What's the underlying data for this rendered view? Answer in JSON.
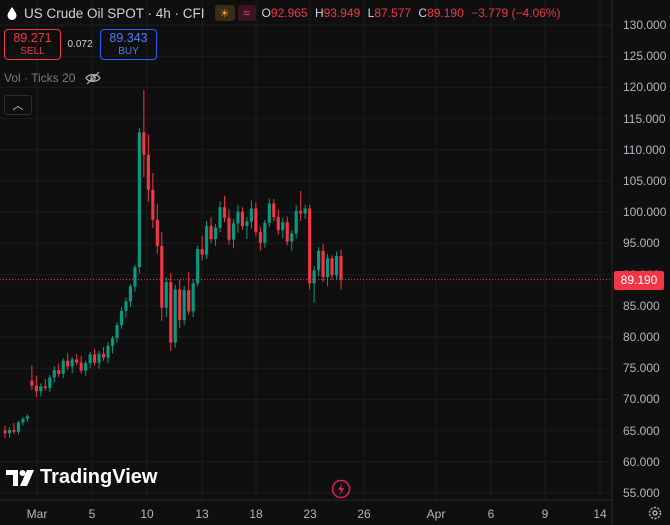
{
  "header": {
    "title": "US Crude Oil SPOT · 4h · CFI",
    "session_icon": "sun-icon",
    "ohlc": [
      {
        "label": "O",
        "value": "92.965"
      },
      {
        "label": "H",
        "value": "93.949"
      },
      {
        "label": "L",
        "value": "87.577"
      },
      {
        "label": "C",
        "value": "89.190"
      },
      {
        "label": "",
        "value": "−3.779 (−4.06%)"
      }
    ]
  },
  "trade": {
    "sell_price": "89.271",
    "sell_label": "SELL",
    "spread": "0.072",
    "buy_price": "89.343",
    "buy_label": "BUY"
  },
  "indicator": {
    "label": "Vol · Ticks 20"
  },
  "logo": {
    "text": "TradingView"
  },
  "price_axis": {
    "ticks": [
      "130.000",
      "125.000",
      "120.000",
      "115.000",
      "110.000",
      "105.000",
      "100.000",
      "95.000",
      "90.000",
      "85.000",
      "80.000",
      "75.000",
      "70.000",
      "65.000",
      "60.000",
      "55.000"
    ],
    "last_price": "89.190"
  },
  "time_axis": {
    "ticks": [
      "Mar",
      "5",
      "10",
      "13",
      "18",
      "23",
      "26",
      "Apr",
      "6",
      "9",
      "14"
    ]
  },
  "colors": {
    "up": "#089981",
    "down": "#f23645",
    "background": "#0f0f0f",
    "grid": "#1c1c1c"
  },
  "chart_data": {
    "type": "candlestick",
    "ylim": [
      55,
      130
    ],
    "grid": true,
    "last_price": 89.19,
    "candles": [
      [
        65,
        65.8,
        63.8,
        64.6
      ],
      [
        64.6,
        65.6,
        63.9,
        65.1
      ],
      [
        65.1,
        66.2,
        64.5,
        64.8
      ],
      [
        64.8,
        66.6,
        64.4,
        66.3
      ],
      [
        66.3,
        67.2,
        65.8,
        66.9
      ],
      [
        66.9,
        67.6,
        66.4,
        67.3
      ],
      [
        73,
        75.5,
        71.5,
        72.2
      ],
      [
        72.2,
        73.8,
        70.4,
        71.3
      ],
      [
        71.3,
        72.6,
        70.5,
        72.1
      ],
      [
        72.1,
        73.3,
        71.4,
        71.8
      ],
      [
        71.8,
        73.9,
        71.2,
        73.5
      ],
      [
        73.5,
        75.3,
        72.7,
        74.7
      ],
      [
        74.7,
        75.8,
        73.6,
        74.1
      ],
      [
        74.1,
        76.6,
        73.4,
        76.2
      ],
      [
        76.2,
        77.4,
        74.7,
        75.3
      ],
      [
        75.3,
        76.8,
        74.2,
        76.4
      ],
      [
        76.4,
        77.3,
        75.5,
        75.9
      ],
      [
        75.9,
        77,
        74.1,
        74.6
      ],
      [
        74.6,
        76.2,
        73.8,
        75.8
      ],
      [
        75.8,
        77.6,
        75,
        77.2
      ],
      [
        77.2,
        78.1,
        75.4,
        75.9
      ],
      [
        75.9,
        77.8,
        74.9,
        77.3
      ],
      [
        77.3,
        78.4,
        76.2,
        76.7
      ],
      [
        76.7,
        79.2,
        75.8,
        78.6
      ],
      [
        78.6,
        80.2,
        77.4,
        79.8
      ],
      [
        79.8,
        82.4,
        79.1,
        81.9
      ],
      [
        81.9,
        84.8,
        81.3,
        84.2
      ],
      [
        84.2,
        86.3,
        83.1,
        85.7
      ],
      [
        85.7,
        88.5,
        84.8,
        88.1
      ],
      [
        88.1,
        91.6,
        87.3,
        91.2
      ],
      [
        91.2,
        113.5,
        90.2,
        112.8
      ],
      [
        112.8,
        119.6,
        105.6,
        109.2
      ],
      [
        109.2,
        112.4,
        101.7,
        103.6
      ],
      [
        103.6,
        106.3,
        97.5,
        98.8
      ],
      [
        98.8,
        101.4,
        93.4,
        94.6
      ],
      [
        94.6,
        96.8,
        82.6,
        84.7
      ],
      [
        84.7,
        89.6,
        83.2,
        88.8
      ],
      [
        88.8,
        90.2,
        77.8,
        79.1
      ],
      [
        79.1,
        88.4,
        78.3,
        87.6
      ],
      [
        87.6,
        89.2,
        81.4,
        82.7
      ],
      [
        82.7,
        88.2,
        81.9,
        87.5
      ],
      [
        87.5,
        90.4,
        83.6,
        84.1
      ],
      [
        84.1,
        89.3,
        83.2,
        88.6
      ],
      [
        88.6,
        94.6,
        88.1,
        94.1
      ],
      [
        94.1,
        96.2,
        92.3,
        93.2
      ],
      [
        93.2,
        98.6,
        92.5,
        97.8
      ],
      [
        97.8,
        99.2,
        95.1,
        95.7
      ],
      [
        95.7,
        98.1,
        94.6,
        97.5
      ],
      [
        97.5,
        101.7,
        96.8,
        100.8
      ],
      [
        100.8,
        102.6,
        98.4,
        99.1
      ],
      [
        99.1,
        100.5,
        94.8,
        95.6
      ],
      [
        95.6,
        98.9,
        94.2,
        98.2
      ],
      [
        98.2,
        101.2,
        96.7,
        100.1
      ],
      [
        100.1,
        100.8,
        97.2,
        97.8
      ],
      [
        97.8,
        99.2,
        95.7,
        98.5
      ],
      [
        98.5,
        101.9,
        97.4,
        100.6
      ],
      [
        100.6,
        101.6,
        96.2,
        96.8
      ],
      [
        96.8,
        97.6,
        93.9,
        95.1
      ],
      [
        95.1,
        98.8,
        94.3,
        98.3
      ],
      [
        98.3,
        102.2,
        97.6,
        101.4
      ],
      [
        101.4,
        102.1,
        98.6,
        99.2
      ],
      [
        99.2,
        100.4,
        96.4,
        97.1
      ],
      [
        97.1,
        99.1,
        95.8,
        98.4
      ],
      [
        98.4,
        99.3,
        94.7,
        95.3
      ],
      [
        95.3,
        97.1,
        93.8,
        96.6
      ],
      [
        96.6,
        101.1,
        95.8,
        100.2
      ],
      [
        100.2,
        103.4,
        98.6,
        99.8
      ],
      [
        99.8,
        101.2,
        98.9,
        100.6
      ],
      [
        100.6,
        101.2,
        87.6,
        88.6
      ],
      [
        88.6,
        91.4,
        85.5,
        90.7
      ],
      [
        90.7,
        94.4,
        89.7,
        93.8
      ],
      [
        93.8,
        94.9,
        88.8,
        89.6
      ],
      [
        89.6,
        93.3,
        88.1,
        92.6
      ],
      [
        92.6,
        93.1,
        89.2,
        89.9
      ],
      [
        89.9,
        93.7,
        89.1,
        92.965
      ],
      [
        92.965,
        93.949,
        87.577,
        89.19
      ]
    ]
  }
}
